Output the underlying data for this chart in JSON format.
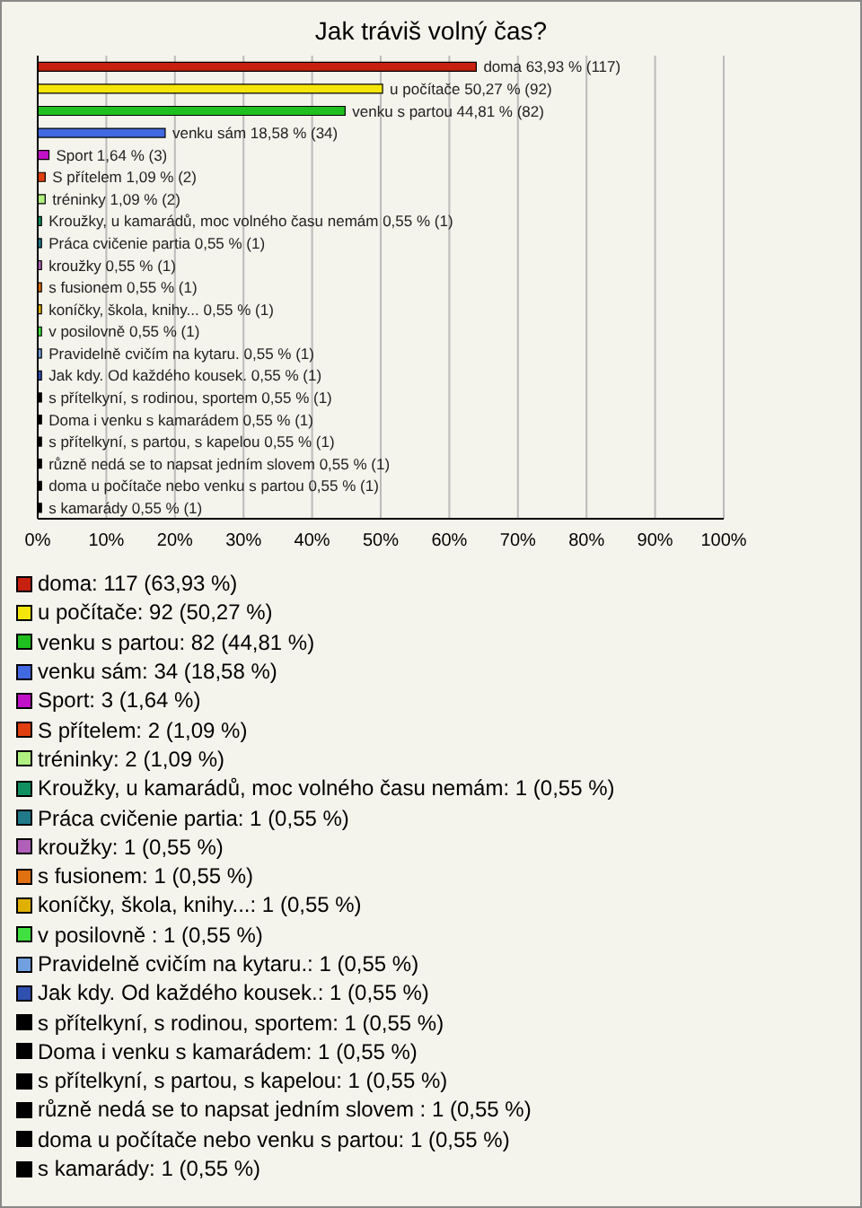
{
  "chart_data": {
    "type": "bar",
    "orientation": "horizontal",
    "stacked": true,
    "title": "Jak tráviš volný čas?",
    "categories": [
      null,
      null,
      null,
      null,
      null,
      null,
      null,
      null,
      null,
      null,
      null,
      null,
      null,
      null,
      null,
      null,
      null,
      null,
      null,
      null,
      null
    ],
    "xlim": [
      0,
      100
    ],
    "xticks": [
      {
        "value": 0,
        "label": "0%"
      },
      {
        "value": 10,
        "label": "10%"
      },
      {
        "value": 20,
        "label": "20%"
      },
      {
        "value": 30,
        "label": "30%"
      },
      {
        "value": 40,
        "label": "40%"
      },
      {
        "value": 50,
        "label": "50%"
      },
      {
        "value": 60,
        "label": "60%"
      },
      {
        "value": 70,
        "label": "70%"
      },
      {
        "value": 80,
        "label": "80%"
      },
      {
        "value": 90,
        "label": "90%"
      },
      {
        "value": 100,
        "label": "100%"
      }
    ],
    "grid": "x",
    "tick_labels": "x",
    "legend": "bottom",
    "series": [
      {
        "name": "doma: 117 (63,93 %)",
        "color": "#c8200e",
        "values": [
          63.93,
          null,
          null,
          null,
          null,
          null,
          null,
          null,
          null,
          null,
          null,
          null,
          null,
          null,
          null,
          null,
          null,
          null,
          null,
          null,
          null
        ],
        "value_labels": [
          "doma 63,93 % (117)",
          null,
          null,
          null,
          null,
          null,
          null,
          null,
          null,
          null,
          null,
          null,
          null,
          null,
          null,
          null,
          null,
          null,
          null,
          null,
          null
        ]
      },
      {
        "name": "u počítače: 92 (50,27 %)",
        "color": "#f5e50a",
        "values": [
          null,
          50.27,
          null,
          null,
          null,
          null,
          null,
          null,
          null,
          null,
          null,
          null,
          null,
          null,
          null,
          null,
          null,
          null,
          null,
          null,
          null
        ],
        "value_labels": [
          null,
          "u počítače 50,27 % (92)",
          null,
          null,
          null,
          null,
          null,
          null,
          null,
          null,
          null,
          null,
          null,
          null,
          null,
          null,
          null,
          null,
          null,
          null,
          null
        ]
      },
      {
        "name": "venku s partou: 82 (44,81 %)",
        "color": "#1fbf1f",
        "values": [
          null,
          null,
          44.81,
          null,
          null,
          null,
          null,
          null,
          null,
          null,
          null,
          null,
          null,
          null,
          null,
          null,
          null,
          null,
          null,
          null,
          null
        ],
        "value_labels": [
          null,
          null,
          "venku s partou 44,81 % (82)",
          null,
          null,
          null,
          null,
          null,
          null,
          null,
          null,
          null,
          null,
          null,
          null,
          null,
          null,
          null,
          null,
          null,
          null
        ]
      },
      {
        "name": "venku sám: 34 (18,58 %)",
        "color": "#4169e1",
        "values": [
          null,
          null,
          null,
          18.58,
          null,
          null,
          null,
          null,
          null,
          null,
          null,
          null,
          null,
          null,
          null,
          null,
          null,
          null,
          null,
          null,
          null
        ],
        "value_labels": [
          null,
          null,
          null,
          "venku sám 18,58 % (34)",
          null,
          null,
          null,
          null,
          null,
          null,
          null,
          null,
          null,
          null,
          null,
          null,
          null,
          null,
          null,
          null,
          null
        ]
      },
      {
        "name": "Sport: 3 (1,64 %)",
        "color": "#c010c8",
        "values": [
          null,
          null,
          null,
          null,
          1.64,
          null,
          null,
          null,
          null,
          null,
          null,
          null,
          null,
          null,
          null,
          null,
          null,
          null,
          null,
          null,
          null
        ],
        "value_labels": [
          null,
          null,
          null,
          null,
          "Sport 1,64 % (3)",
          null,
          null,
          null,
          null,
          null,
          null,
          null,
          null,
          null,
          null,
          null,
          null,
          null,
          null,
          null,
          null
        ]
      },
      {
        "name": "S přítelem: 2 (1,09 %)",
        "color": "#e04010",
        "values": [
          null,
          null,
          null,
          null,
          null,
          1.09,
          null,
          null,
          null,
          null,
          null,
          null,
          null,
          null,
          null,
          null,
          null,
          null,
          null,
          null,
          null
        ],
        "value_labels": [
          null,
          null,
          null,
          null,
          null,
          "S přítelem 1,09 % (2)",
          null,
          null,
          null,
          null,
          null,
          null,
          null,
          null,
          null,
          null,
          null,
          null,
          null,
          null,
          null
        ]
      },
      {
        "name": "tréninky: 2 (1,09 %)",
        "color": "#b0f080",
        "values": [
          null,
          null,
          null,
          null,
          null,
          null,
          1.09,
          null,
          null,
          null,
          null,
          null,
          null,
          null,
          null,
          null,
          null,
          null,
          null,
          null,
          null
        ],
        "value_labels": [
          null,
          null,
          null,
          null,
          null,
          null,
          "tréninky 1,09 % (2)",
          null,
          null,
          null,
          null,
          null,
          null,
          null,
          null,
          null,
          null,
          null,
          null,
          null,
          null
        ]
      },
      {
        "name": "Kroužky, u kamarádů, moc volného času nemám: 1 (0,55 %)",
        "color": "#109060",
        "values": [
          null,
          null,
          null,
          null,
          null,
          null,
          null,
          0.55,
          null,
          null,
          null,
          null,
          null,
          null,
          null,
          null,
          null,
          null,
          null,
          null,
          null
        ],
        "value_labels": [
          null,
          null,
          null,
          null,
          null,
          null,
          null,
          "Kroužky, u kamarádů, moc volného času nemám 0,55 % (1)",
          null,
          null,
          null,
          null,
          null,
          null,
          null,
          null,
          null,
          null,
          null,
          null,
          null
        ]
      },
      {
        "name": "Práca cvičenie partia: 1 (0,55 %)",
        "color": "#207a8a",
        "values": [
          null,
          null,
          null,
          null,
          null,
          null,
          null,
          null,
          0.55,
          null,
          null,
          null,
          null,
          null,
          null,
          null,
          null,
          null,
          null,
          null,
          null
        ],
        "value_labels": [
          null,
          null,
          null,
          null,
          null,
          null,
          null,
          null,
          "Práca cvičenie partia 0,55 % (1)",
          null,
          null,
          null,
          null,
          null,
          null,
          null,
          null,
          null,
          null,
          null,
          null
        ]
      },
      {
        "name": "kroužky: 1 (0,55 %)",
        "color": "#b060b8",
        "values": [
          null,
          null,
          null,
          null,
          null,
          null,
          null,
          null,
          null,
          0.55,
          null,
          null,
          null,
          null,
          null,
          null,
          null,
          null,
          null,
          null,
          null
        ],
        "value_labels": [
          null,
          null,
          null,
          null,
          null,
          null,
          null,
          null,
          null,
          "kroužky 0,55 % (1)",
          null,
          null,
          null,
          null,
          null,
          null,
          null,
          null,
          null,
          null,
          null
        ]
      },
      {
        "name": "s fusionem: 1 (0,55 %)",
        "color": "#e07010",
        "values": [
          null,
          null,
          null,
          null,
          null,
          null,
          null,
          null,
          null,
          null,
          0.55,
          null,
          null,
          null,
          null,
          null,
          null,
          null,
          null,
          null,
          null
        ],
        "value_labels": [
          null,
          null,
          null,
          null,
          null,
          null,
          null,
          null,
          null,
          null,
          "s fusionem 0,55 % (1)",
          null,
          null,
          null,
          null,
          null,
          null,
          null,
          null,
          null,
          null
        ]
      },
      {
        "name": "koníčky, škola, knihy...: 1 (0,55 %)",
        "color": "#e0b000",
        "values": [
          null,
          null,
          null,
          null,
          null,
          null,
          null,
          null,
          null,
          null,
          null,
          0.55,
          null,
          null,
          null,
          null,
          null,
          null,
          null,
          null,
          null
        ],
        "value_labels": [
          null,
          null,
          null,
          null,
          null,
          null,
          null,
          null,
          null,
          null,
          null,
          "koníčky, škola, knihy... 0,55 % (1)",
          null,
          null,
          null,
          null,
          null,
          null,
          null,
          null,
          null
        ]
      },
      {
        "name": "v posilovně : 1 (0,55 %)",
        "color": "#40e040",
        "values": [
          null,
          null,
          null,
          null,
          null,
          null,
          null,
          null,
          null,
          null,
          null,
          null,
          0.55,
          null,
          null,
          null,
          null,
          null,
          null,
          null,
          null
        ],
        "value_labels": [
          null,
          null,
          null,
          null,
          null,
          null,
          null,
          null,
          null,
          null,
          null,
          null,
          "v posilovně  0,55 % (1)",
          null,
          null,
          null,
          null,
          null,
          null,
          null,
          null
        ]
      },
      {
        "name": "Pravidelně cvičím na kytaru.: 1 (0,55 %)",
        "color": "#70a0e0",
        "values": [
          null,
          null,
          null,
          null,
          null,
          null,
          null,
          null,
          null,
          null,
          null,
          null,
          null,
          0.55,
          null,
          null,
          null,
          null,
          null,
          null,
          null
        ],
        "value_labels": [
          null,
          null,
          null,
          null,
          null,
          null,
          null,
          null,
          null,
          null,
          null,
          null,
          null,
          "Pravidelně cvičím na kytaru. 0,55 % (1)",
          null,
          null,
          null,
          null,
          null,
          null,
          null
        ]
      },
      {
        "name": "Jak kdy. Od každého kousek.: 1 (0,55 %)",
        "color": "#3050b0",
        "values": [
          null,
          null,
          null,
          null,
          null,
          null,
          null,
          null,
          null,
          null,
          null,
          null,
          null,
          null,
          0.55,
          null,
          null,
          null,
          null,
          null,
          null
        ],
        "value_labels": [
          null,
          null,
          null,
          null,
          null,
          null,
          null,
          null,
          null,
          null,
          null,
          null,
          null,
          null,
          "Jak kdy. Od každého kousek. 0,55 % (1)",
          null,
          null,
          null,
          null,
          null,
          null
        ]
      },
      {
        "name": "s přítelkyní, s rodinou, sportem: 1 (0,55 %)",
        "color": "#000000",
        "values": [
          null,
          null,
          null,
          null,
          null,
          null,
          null,
          null,
          null,
          null,
          null,
          null,
          null,
          null,
          null,
          0.55,
          null,
          null,
          null,
          null,
          null
        ],
        "value_labels": [
          null,
          null,
          null,
          null,
          null,
          null,
          null,
          null,
          null,
          null,
          null,
          null,
          null,
          null,
          null,
          "s přítelkyní, s rodinou, sportem 0,55 % (1)",
          null,
          null,
          null,
          null,
          null
        ]
      },
      {
        "name": "Doma i venku s kamarádem: 1 (0,55 %)",
        "color": "#000000",
        "values": [
          null,
          null,
          null,
          null,
          null,
          null,
          null,
          null,
          null,
          null,
          null,
          null,
          null,
          null,
          null,
          null,
          0.55,
          null,
          null,
          null,
          null
        ],
        "value_labels": [
          null,
          null,
          null,
          null,
          null,
          null,
          null,
          null,
          null,
          null,
          null,
          null,
          null,
          null,
          null,
          null,
          "Doma i venku s kamarádem 0,55 % (1)",
          null,
          null,
          null,
          null
        ]
      },
      {
        "name": "s přítelkyní, s partou, s kapelou: 1 (0,55 %)",
        "color": "#000000",
        "values": [
          null,
          null,
          null,
          null,
          null,
          null,
          null,
          null,
          null,
          null,
          null,
          null,
          null,
          null,
          null,
          null,
          null,
          0.55,
          null,
          null,
          null
        ],
        "value_labels": [
          null,
          null,
          null,
          null,
          null,
          null,
          null,
          null,
          null,
          null,
          null,
          null,
          null,
          null,
          null,
          null,
          null,
          "s přítelkyní, s partou, s kapelou 0,55 % (1)",
          null,
          null,
          null
        ]
      },
      {
        "name": "různě nedá se to napsat jedním slovem : 1 (0,55 %)",
        "color": "#000000",
        "values": [
          null,
          null,
          null,
          null,
          null,
          null,
          null,
          null,
          null,
          null,
          null,
          null,
          null,
          null,
          null,
          null,
          null,
          null,
          0.55,
          null,
          null
        ],
        "value_labels": [
          null,
          null,
          null,
          null,
          null,
          null,
          null,
          null,
          null,
          null,
          null,
          null,
          null,
          null,
          null,
          null,
          null,
          null,
          "různě nedá se to napsat jedním slovem  0,55 % (1)",
          null,
          null
        ]
      },
      {
        "name": "doma u počítače nebo venku s partou: 1 (0,55 %)",
        "color": "#000000",
        "values": [
          null,
          null,
          null,
          null,
          null,
          null,
          null,
          null,
          null,
          null,
          null,
          null,
          null,
          null,
          null,
          null,
          null,
          null,
          null,
          0.55,
          null
        ],
        "value_labels": [
          null,
          null,
          null,
          null,
          null,
          null,
          null,
          null,
          null,
          null,
          null,
          null,
          null,
          null,
          null,
          null,
          null,
          null,
          null,
          "doma u počítače nebo venku s partou 0,55 % (1)",
          null
        ]
      },
      {
        "name": "s kamarády: 1 (0,55 %)",
        "color": "#000000",
        "values": [
          null,
          null,
          null,
          null,
          null,
          null,
          null,
          null,
          null,
          null,
          null,
          null,
          null,
          null,
          null,
          null,
          null,
          null,
          null,
          null,
          0.55
        ],
        "value_labels": [
          null,
          null,
          null,
          null,
          null,
          null,
          null,
          null,
          null,
          null,
          null,
          null,
          null,
          null,
          null,
          null,
          null,
          null,
          null,
          null,
          "s kamarády 0,55 % (1)"
        ]
      }
    ]
  }
}
